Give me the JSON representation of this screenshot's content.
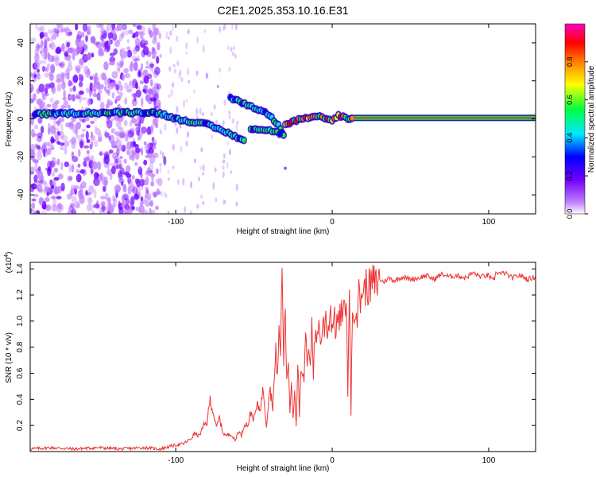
{
  "title": "C2E1.2025.353.10.16.E31",
  "colors": {
    "snr_line": "#ee3333",
    "axis": "#000000",
    "spectrum_line": "#ff2a2a"
  },
  "chart_data": [
    {
      "type": "heatmap",
      "title": "C2E1.2025.353.10.16.E31",
      "xlabel": "Height of straight line (km)",
      "ylabel": "Frequency (Hz)",
      "xlim": [
        -193,
        130
      ],
      "ylim": [
        -50,
        50
      ],
      "xticks": [
        -100,
        0,
        100
      ],
      "yticks": [
        -40,
        -20,
        0,
        20,
        40
      ],
      "colorbar": {
        "label": "Normalized spectral amplitude",
        "range": [
          0,
          1
        ],
        "ticks": [
          0.0,
          0.2,
          0.4,
          0.6,
          0.8
        ],
        "colormap": [
          "#ffffff",
          "#c080ff",
          "#7000ff",
          "#0000ff",
          "#00e8ff",
          "#00ff40",
          "#ffff00",
          "#ff8000",
          "#ff0000",
          "#ff00c0"
        ]
      },
      "ridges": [
        {
          "name": "main",
          "points": [
            [
              -190,
              2.5
            ],
            [
              -160,
              3
            ],
            [
              -120,
              3.5
            ],
            [
              -110,
              3
            ],
            [
              -100,
              0
            ],
            [
              -80,
              -3
            ],
            [
              -65,
              -8
            ],
            [
              -55,
              -12
            ]
          ]
        },
        {
          "name": "upper-branch",
          "points": [
            [
              -65,
              11
            ],
            [
              -50,
              6
            ],
            [
              -40,
              2
            ],
            [
              -33,
              -5
            ],
            [
              -30,
              -10
            ]
          ]
        },
        {
          "name": "lower-branch",
          "points": [
            [
              -52,
              -5
            ],
            [
              -40,
              -6
            ],
            [
              -32,
              -8
            ]
          ]
        },
        {
          "name": "tail",
          "points": [
            [
              -30,
              -3
            ],
            [
              -20,
              0
            ],
            [
              -8,
              1
            ],
            [
              0,
              -1
            ],
            [
              4,
              2
            ],
            [
              10,
              0
            ],
            [
              14,
              0
            ]
          ]
        },
        {
          "name": "steady",
          "points": [
            [
              14,
              0.5
            ],
            [
              130,
              0.5
            ]
          ]
        }
      ]
    },
    {
      "type": "line",
      "xlabel": "Height of straight line (km)",
      "ylabel": "SNR (10 * v/v)",
      "multiplier_label": "(x10",
      "multiplier_exp": "4",
      "multiplier_close": ")",
      "xlim": [
        -193,
        130
      ],
      "ylim": [
        0,
        1.45
      ],
      "xticks": [
        -100,
        0,
        100
      ],
      "yticks": [
        0.2,
        0.4,
        0.6,
        0.8,
        1.0,
        1.2,
        1.4
      ],
      "series": [
        {
          "name": "SNR",
          "x": [
            -193,
            -180,
            -165,
            -150,
            -135,
            -120,
            -110,
            -100,
            -95,
            -90,
            -88,
            -85,
            -82,
            -80,
            -78,
            -76,
            -74,
            -72,
            -70,
            -68,
            -65,
            -62,
            -60,
            -58,
            -56,
            -54,
            -52,
            -50,
            -48,
            -46,
            -44,
            -42,
            -40,
            -38,
            -36,
            -35,
            -34,
            -33,
            -32,
            -31,
            -30,
            -29,
            -28,
            -27,
            -26,
            -25,
            -24,
            -23,
            -22,
            -21,
            -20,
            -19,
            -18,
            -17,
            -16,
            -15,
            -14,
            -13,
            -12,
            -11,
            -10,
            -9,
            -8,
            -7,
            -6,
            -5,
            -4,
            -3,
            -2,
            -1,
            0,
            1,
            2,
            3,
            4,
            5,
            6,
            7,
            8,
            9,
            10,
            11,
            12,
            13,
            14,
            15,
            16,
            17,
            18,
            19,
            20,
            22,
            24,
            26,
            28,
            30,
            33,
            36,
            40,
            45,
            50,
            55,
            60,
            65,
            70,
            75,
            80,
            85,
            90,
            95,
            100,
            103,
            105,
            108,
            110,
            115,
            120,
            125,
            130
          ],
          "values": [
            0.02,
            0.03,
            0.02,
            0.03,
            0.02,
            0.03,
            0.02,
            0.05,
            0.06,
            0.1,
            0.14,
            0.12,
            0.2,
            0.22,
            0.4,
            0.3,
            0.18,
            0.26,
            0.15,
            0.12,
            0.14,
            0.08,
            0.16,
            0.12,
            0.22,
            0.2,
            0.3,
            0.25,
            0.35,
            0.33,
            0.48,
            0.2,
            0.5,
            0.35,
            0.75,
            0.6,
            0.9,
            0.75,
            1.42,
            0.7,
            1.15,
            0.5,
            0.72,
            0.3,
            0.55,
            0.25,
            0.5,
            0.2,
            0.72,
            0.28,
            0.55,
            0.6,
            0.5,
            0.95,
            0.6,
            0.85,
            0.7,
            1.0,
            0.6,
            0.9,
            0.85,
            1.0,
            0.9,
            0.85,
            0.98,
            0.95,
            1.05,
            0.92,
            1.0,
            1.08,
            0.96,
            1.04,
            0.95,
            1.0,
            0.98,
            1.02,
            1.08,
            0.99,
            1.12,
            1.2,
            0.4,
            1.35,
            0.28,
            1.05,
            1.1,
            1.15,
            1.05,
            1.2,
            1.15,
            1.25,
            1.22,
            1.28,
            1.25,
            1.3,
            1.28,
            1.32,
            1.3,
            1.33,
            1.31,
            1.34,
            1.32,
            1.33,
            1.35,
            1.32,
            1.36,
            1.34,
            1.35,
            1.33,
            1.37,
            1.34,
            1.35,
            1.3,
            1.38,
            1.36,
            1.37,
            1.33,
            1.35,
            1.32,
            1.34
          ]
        }
      ]
    }
  ]
}
